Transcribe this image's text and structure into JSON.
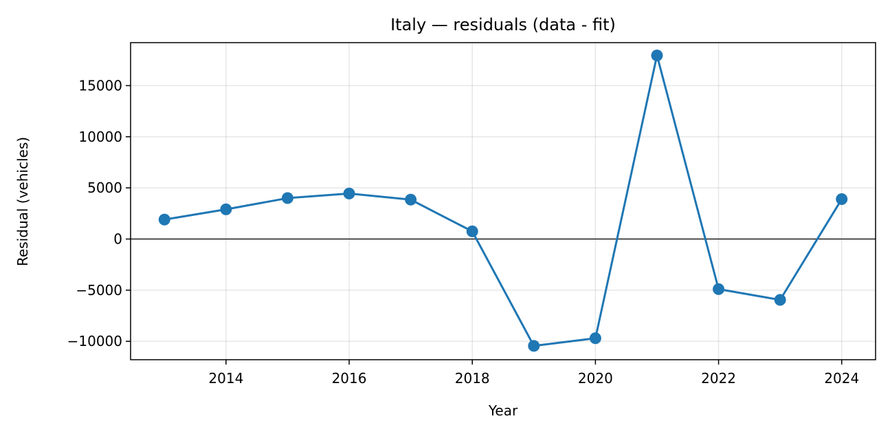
{
  "chart_data": {
    "type": "line",
    "title": "Italy — residuals (data - fit)",
    "xlabel": "Year",
    "ylabel": "Residual (vehicles)",
    "x": [
      2013,
      2014,
      2015,
      2016,
      2017,
      2018,
      2019,
      2020,
      2021,
      2022,
      2023,
      2024
    ],
    "series": [
      {
        "values": [
          1900,
          2900,
          4000,
          4450,
          3850,
          750,
          -10450,
          -9700,
          17950,
          -4900,
          -5950,
          3900
        ],
        "color": "#1f77b4",
        "marker": "circle"
      }
    ],
    "xlim": [
      2012.45,
      2024.55
    ],
    "ylim": [
      -11800,
      19200
    ],
    "xticks": [
      2014,
      2016,
      2018,
      2020,
      2022,
      2024
    ],
    "xtick_labels": [
      "2014",
      "2016",
      "2018",
      "2020",
      "2022",
      "2024"
    ],
    "yticks": [
      -10000,
      -5000,
      0,
      5000,
      10000,
      15000
    ],
    "ytick_labels": [
      "−10000",
      "−5000",
      "0",
      "5000",
      "10000",
      "15000"
    ],
    "grid": true,
    "zero_line": true
  }
}
